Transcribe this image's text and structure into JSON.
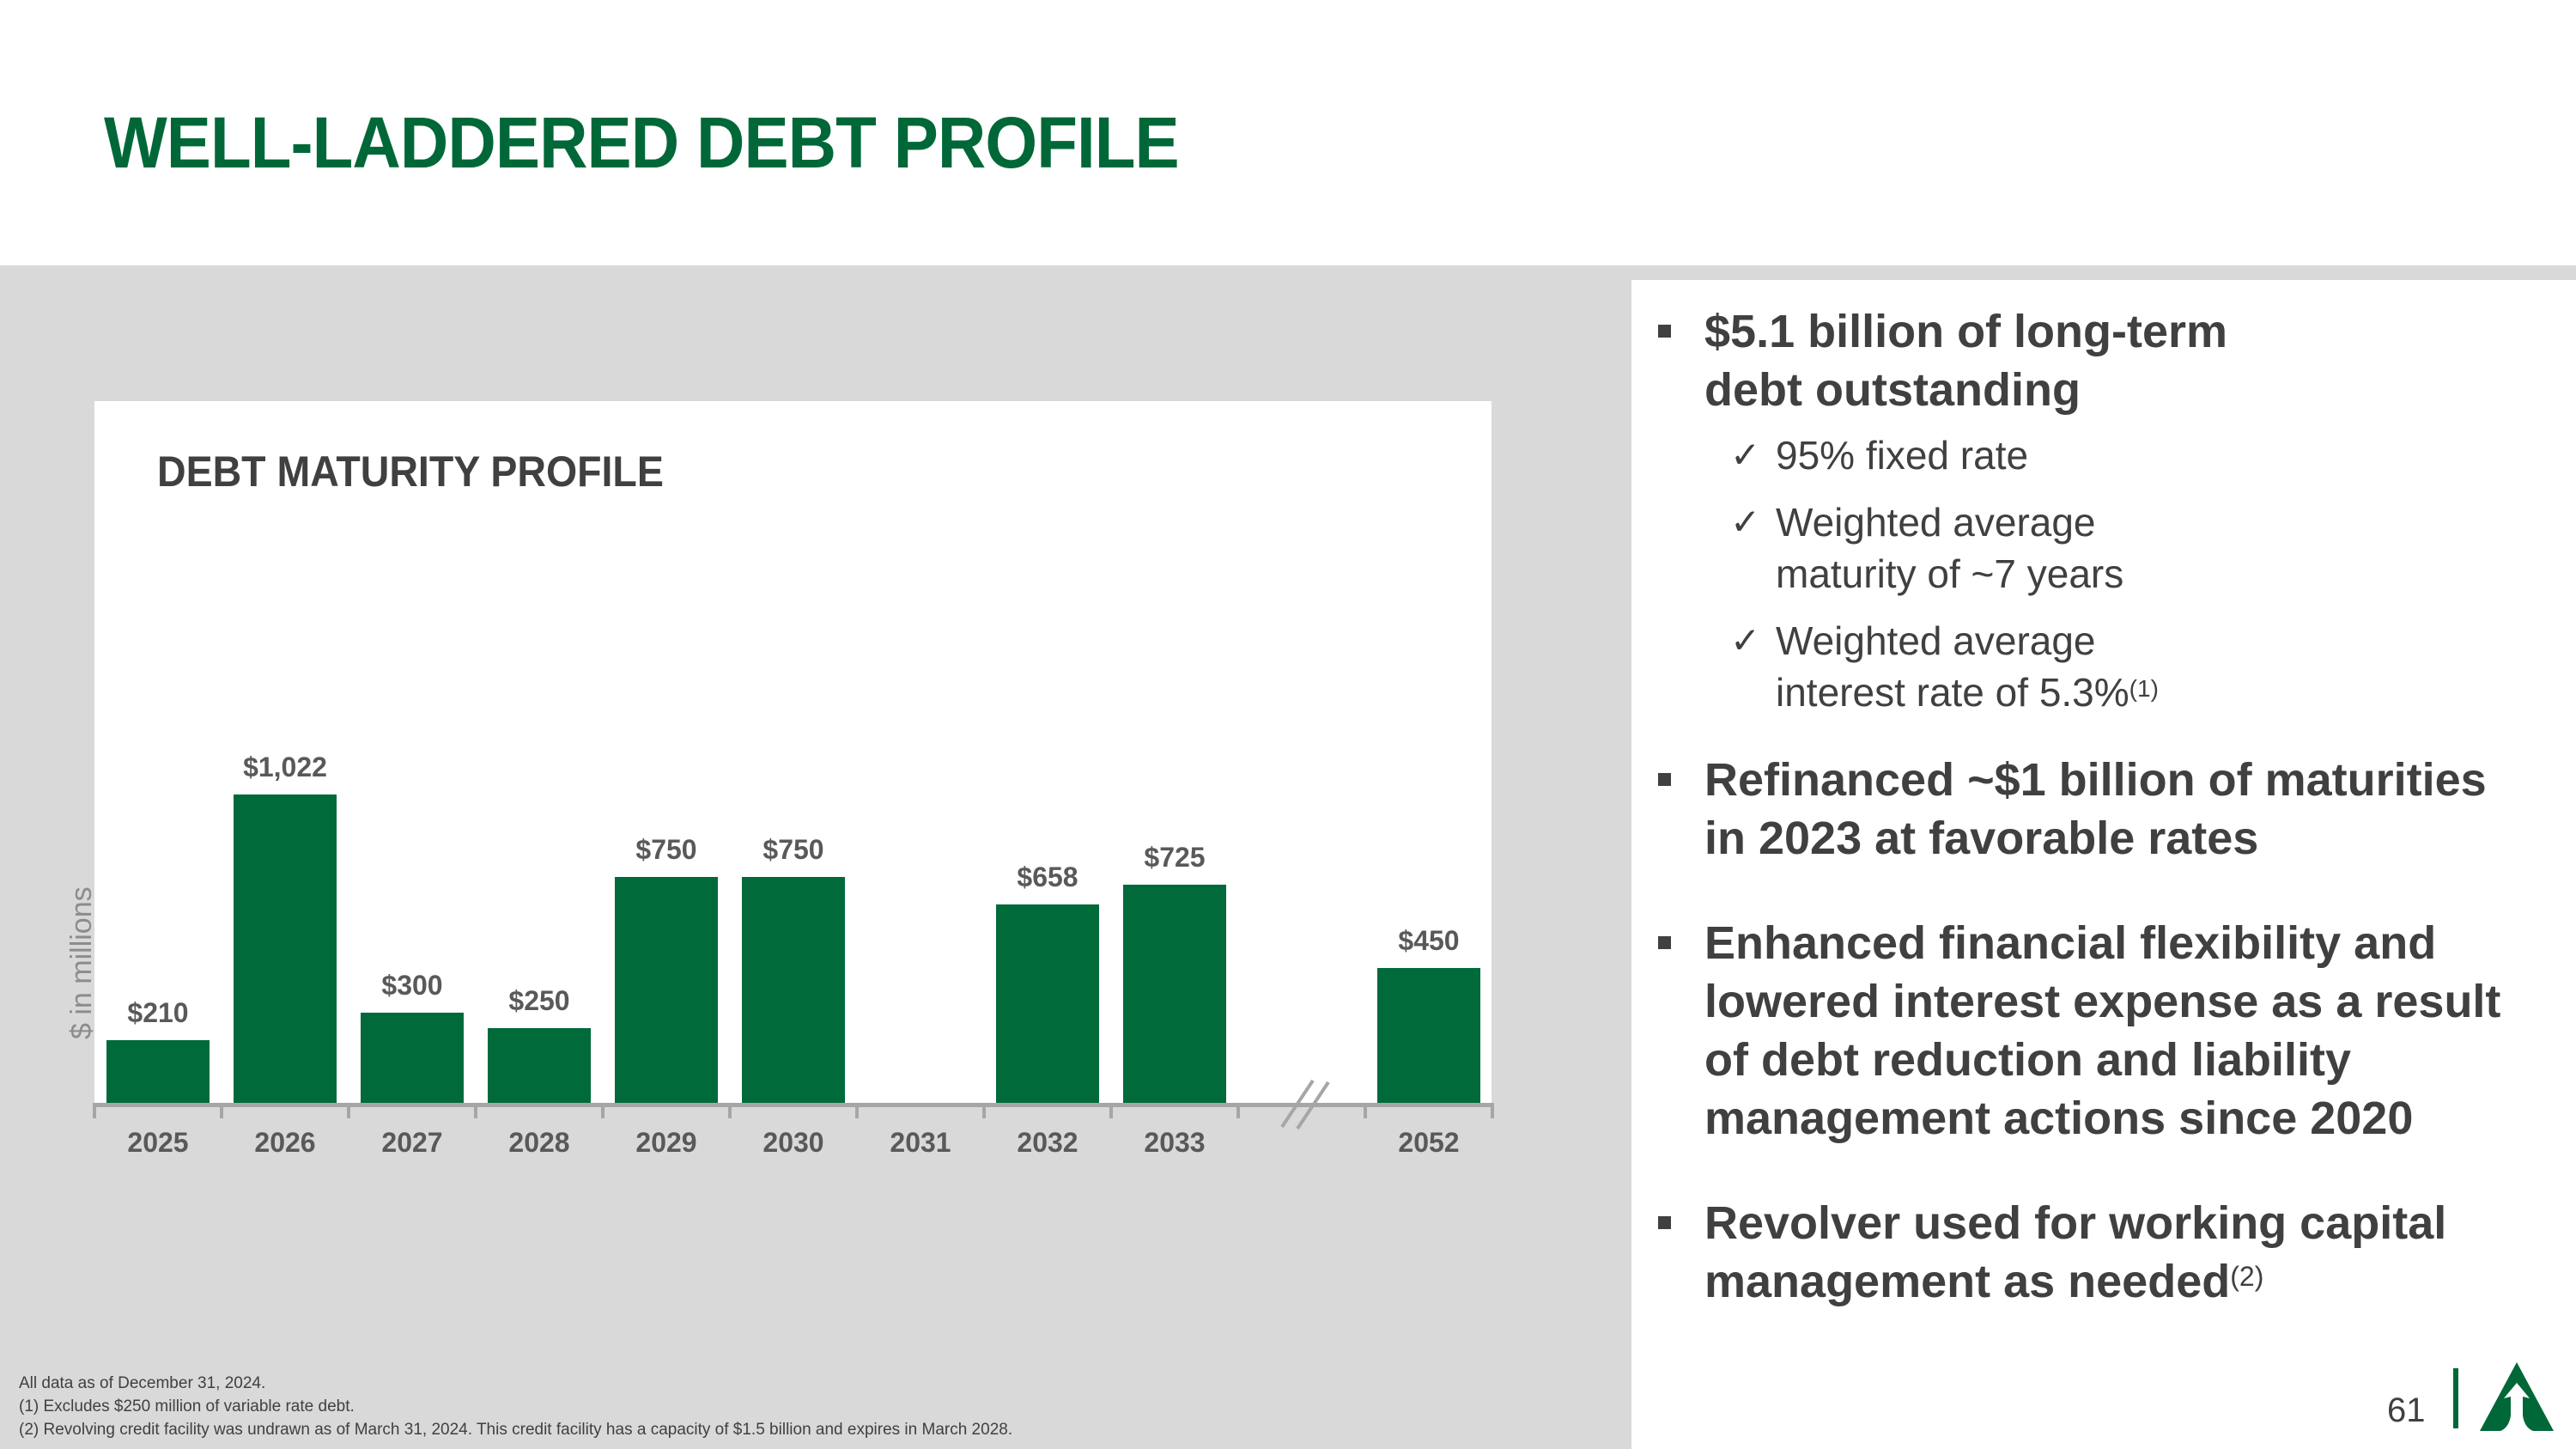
{
  "page": {
    "title": "WELL-LADDERED DEBT PROFILE",
    "page_number": "61",
    "brand_color": "#006838",
    "logo_icon": "tree-triangle-logo-icon"
  },
  "chart": {
    "title": "DEBT MATURITY PROFILE",
    "y_label": "$ in millions",
    "break_marker": "//"
  },
  "chart_data": {
    "type": "bar",
    "title": "DEBT MATURITY PROFILE",
    "xlabel": "",
    "ylabel": "$ in millions",
    "categories": [
      "2025",
      "2026",
      "2027",
      "2028",
      "2029",
      "2030",
      "2031",
      "2032",
      "2033",
      "2052"
    ],
    "values": [
      210,
      1022,
      300,
      250,
      750,
      750,
      0,
      658,
      725,
      450
    ],
    "value_labels": [
      "$210",
      "$1,022",
      "$300",
      "$250",
      "$750",
      "$750",
      "",
      "$658",
      "$725",
      "$450"
    ],
    "axis_break_between": [
      "2033",
      "2052"
    ],
    "bar_color": "#006a3b",
    "grid": false,
    "legend": null,
    "ylim": [
      0,
      1100
    ]
  },
  "bullets": [
    {
      "text": "$5.1 billion of long-term debt outstanding",
      "lines": [
        "$5.1 billion of long-term",
        "debt outstanding"
      ],
      "sub_items": [
        {
          "lines": [
            "95% fixed rate"
          ],
          "sup": ""
        },
        {
          "lines": [
            "Weighted average",
            "maturity of ~7 years"
          ],
          "sup": ""
        },
        {
          "lines": [
            "Weighted average",
            "interest rate of 5.3%"
          ],
          "sup": "(1)"
        }
      ]
    },
    {
      "lines": [
        "Refinanced ~$1 billion of maturities",
        "in 2023 at favorable rates"
      ],
      "sup": ""
    },
    {
      "lines": [
        "Enhanced financial flexibility and",
        "lowered interest expense as a result",
        "of debt reduction and liability",
        "management actions since 2020"
      ],
      "sup": ""
    },
    {
      "lines": [
        "Revolver used for working capital",
        "management as needed"
      ],
      "sup": "(2)"
    }
  ],
  "check_glyph": "✓",
  "footnotes": [
    "All data as of December 31, 2024.",
    "(1) Excludes $250 million of variable rate debt.",
    "(2) Revolving credit facility was undrawn as of March 31, 2024. This credit facility has a capacity of $1.5 billion and expires in March 2028."
  ]
}
